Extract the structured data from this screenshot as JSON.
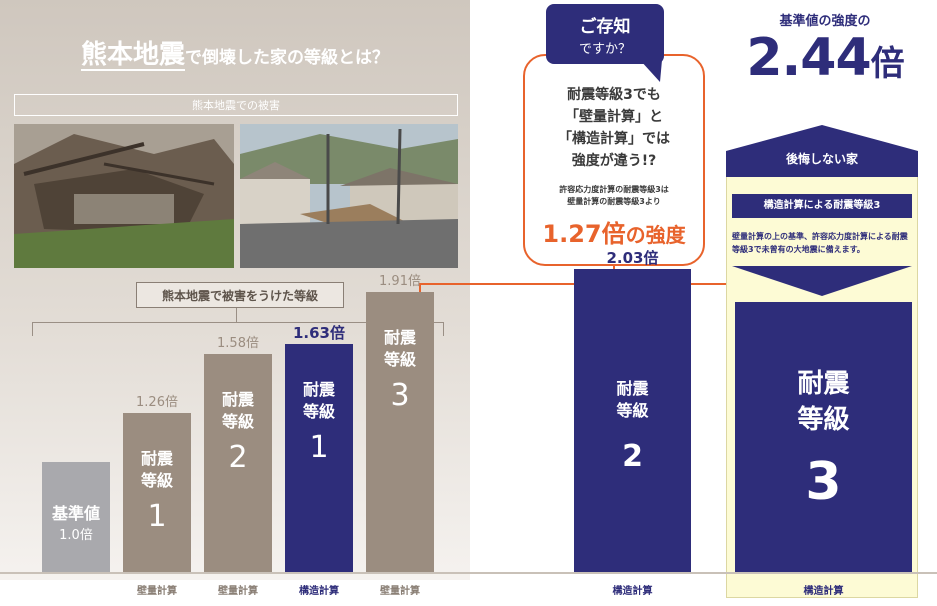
{
  "header": {
    "title_big": "熊本地震",
    "title_rest": "で倒壊した家の等級とは？",
    "photo_caption": "熊本地震での被害",
    "damage_label": "熊本地震で被害をうけた等級"
  },
  "callout": {
    "bubble_line1": "ご存知",
    "bubble_line2": "ですか？",
    "line1": "耐震等級3でも",
    "line2": "「壁量計算」と",
    "line3": "「構造計算」では",
    "line4": "強度が違う!?",
    "small1": "許容応力度計算の耐震等級3は",
    "small2": "壁量計算の耐震等級3より",
    "big_value": "1.27倍",
    "big_suffix": "の強度"
  },
  "standard": {
    "label": "基準値の強度の",
    "value": "2.44",
    "unit": "倍"
  },
  "house": {
    "roof_label": "後悔しない家",
    "title": "構造計算による耐震等級3",
    "description": "壁量計算の上の基準、許容応力度計算による耐震等級3で未曾有の大地震に備えます。"
  },
  "chart_data": {
    "type": "bar",
    "unit": "倍",
    "categories": [
      {
        "label_top": "基準値",
        "label_bottom": "1.0倍",
        "grade": "",
        "method": "",
        "value": 1.0,
        "value_label": "",
        "color": "#a9a9ad"
      },
      {
        "label_top": "耐震",
        "label_bottom": "等級",
        "grade": "1",
        "method": "壁量計算",
        "value": 1.26,
        "value_label": "1.26倍",
        "color": "#9b8d80"
      },
      {
        "label_top": "耐震",
        "label_bottom": "等級",
        "grade": "2",
        "method": "壁量計算",
        "value": 1.58,
        "value_label": "1.58倍",
        "color": "#9b8d80"
      },
      {
        "label_top": "耐震",
        "label_bottom": "等級",
        "grade": "1",
        "method": "構造計算",
        "value": 1.63,
        "value_label": "1.63倍",
        "color": "#2e2d7a"
      },
      {
        "label_top": "耐震",
        "label_bottom": "等級",
        "grade": "3",
        "method": "壁量計算",
        "value": 1.91,
        "value_label": "1.91倍",
        "color": "#9b8d80"
      },
      {
        "label_top": "耐震",
        "label_bottom": "等級",
        "grade": "2",
        "method": "構造計算",
        "value": 2.03,
        "value_label": "2.03倍",
        "color": "#2e2d7a"
      },
      {
        "label_top": "耐震",
        "label_bottom": "等級",
        "grade": "3",
        "method": "構造計算",
        "value": 2.44,
        "value_label": "",
        "color": "#2e2d7a"
      }
    ]
  }
}
